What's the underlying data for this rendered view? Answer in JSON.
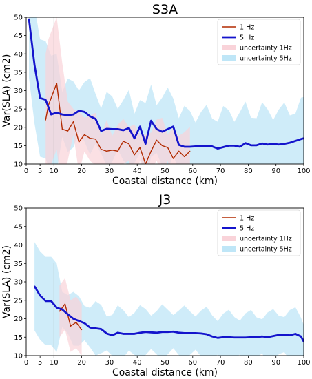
{
  "chart_data": [
    {
      "type": "line",
      "title": "S3A",
      "xlabel": "Coastal distance (km)",
      "ylabel": "Var(SLA) (cm2)",
      "xlim": [
        0,
        100
      ],
      "ylim": [
        10,
        50
      ],
      "xticks": [
        0,
        5,
        10,
        20,
        30,
        40,
        50,
        60,
        70,
        80,
        90,
        100
      ],
      "yticks": [
        10,
        15,
        20,
        25,
        30,
        35,
        40,
        45,
        50
      ],
      "vline_x": 10,
      "legend_position": "top-right",
      "legend": [
        "1 Hz",
        "5 Hz",
        "uncertainty 1Hz",
        "uncertainty 5Hz"
      ],
      "colors": {
        "hz1": "#b22a00",
        "hz5": "#1414cc",
        "unc1": "#f9d3d9",
        "unc5": "#bfe6f7"
      },
      "series": [
        {
          "name": "1 Hz",
          "x": [
            7,
            8,
            11,
            13,
            15,
            17,
            19,
            21,
            23,
            25,
            27,
            29,
            31,
            33,
            35,
            37,
            39,
            41,
            43,
            45,
            47,
            49,
            51,
            53,
            55,
            57,
            59
          ],
          "values": [
            22,
            26,
            32,
            19.5,
            19,
            21.5,
            16,
            18,
            17,
            16.8,
            14,
            13.5,
            13.8,
            13.5,
            16.2,
            15.5,
            12.5,
            14.5,
            10,
            13.5,
            16.5,
            15,
            14.5,
            11.5,
            13.5,
            12,
            13.5
          ]
        },
        {
          "name": "5 Hz",
          "x": [
            1,
            3,
            5,
            7,
            9,
            11,
            13,
            15,
            17,
            19,
            21,
            23,
            25,
            27,
            29,
            31,
            33,
            35,
            37,
            39,
            41,
            43,
            45,
            47,
            49,
            51,
            53,
            55,
            57,
            59,
            61,
            63,
            65,
            67,
            69,
            71,
            73,
            75,
            77,
            79,
            81,
            83,
            85,
            87,
            89,
            91,
            93,
            95,
            97,
            99,
            100
          ],
          "values": [
            49.5,
            37,
            28,
            27.5,
            23.5,
            24,
            23.5,
            23.3,
            23.5,
            24.5,
            24.2,
            23,
            22.3,
            19,
            19.6,
            19.5,
            19.5,
            19.2,
            19.8,
            17,
            20.2,
            15.5,
            21.8,
            19.5,
            18.8,
            19.5,
            20.2,
            15.2,
            14.7,
            14.7,
            14.8,
            14.8,
            14.8,
            14.8,
            14.2,
            14.6,
            15.0,
            15.0,
            14.7,
            15.7,
            15.1,
            15.1,
            15.6,
            15.3,
            15.5,
            15.3,
            15.5,
            15.8,
            16.3,
            16.8,
            17.0
          ]
        }
      ]
    },
    {
      "type": "line",
      "title": "J3",
      "xlabel": "Coastal distance (km)",
      "ylabel": "Var(SLA) (cm2)",
      "xlim": [
        0,
        100
      ],
      "ylim": [
        10,
        50
      ],
      "xticks": [
        0,
        5,
        10,
        20,
        30,
        40,
        50,
        60,
        70,
        80,
        90,
        100
      ],
      "yticks": [
        10,
        15,
        20,
        25,
        30,
        35,
        40,
        45,
        50
      ],
      "vline_x": 10,
      "legend_position": "top-right",
      "legend": [
        "1 Hz",
        "5 Hz",
        "uncertainty 1Hz",
        "uncertainty 5Hz"
      ],
      "colors": {
        "hz1": "#b22a00",
        "hz5": "#1414cc",
        "unc1": "#f9d3d9",
        "unc5": "#bfe6f7"
      },
      "series": [
        {
          "name": "1 Hz",
          "x": [
            12,
            14,
            16,
            18,
            20
          ],
          "values": [
            22,
            24,
            18,
            19,
            17
          ]
        },
        {
          "name": "5 Hz",
          "x": [
            3,
            5,
            7,
            9,
            11,
            13,
            15,
            17,
            19,
            21,
            23,
            25,
            27,
            29,
            31,
            33,
            35,
            37,
            39,
            41,
            43,
            45,
            47,
            49,
            51,
            53,
            55,
            57,
            59,
            61,
            63,
            65,
            67,
            69,
            71,
            73,
            75,
            77,
            79,
            81,
            83,
            85,
            87,
            89,
            91,
            93,
            95,
            97,
            99,
            100
          ],
          "values": [
            28.8,
            26.3,
            24.8,
            24.8,
            23,
            22.5,
            21.2,
            20,
            19.4,
            18.8,
            17.6,
            17.4,
            17.2,
            16.0,
            15.5,
            16.2,
            15.9,
            15.9,
            15.9,
            16.2,
            16.4,
            16.3,
            16.2,
            16.4,
            16.4,
            16.5,
            16.2,
            16.1,
            16.1,
            16.1,
            16.0,
            15.8,
            15.2,
            14.8,
            15.0,
            15.0,
            14.9,
            14.9,
            14.9,
            15.0,
            15.0,
            15.2,
            15.0,
            15.3,
            15.6,
            15.7,
            15.5,
            15.9,
            15.2,
            13.8
          ]
        }
      ]
    }
  ]
}
